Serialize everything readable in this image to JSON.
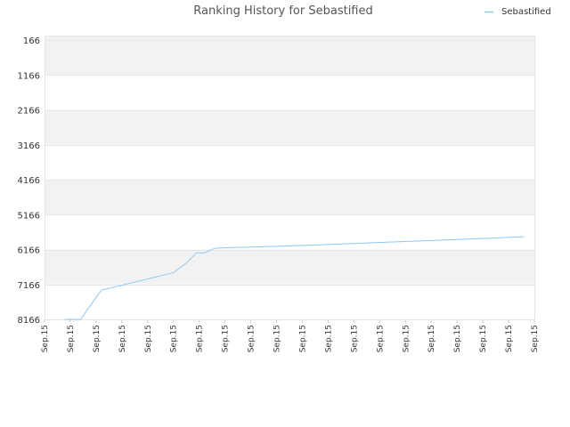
{
  "chart_data": {
    "type": "line",
    "title": "Ranking History for Sebastified",
    "xlabel": "",
    "ylabel": "",
    "y_reversed": true,
    "ylim": [
      166,
      8166
    ],
    "y_ticks": [
      166,
      1166,
      2166,
      3166,
      4166,
      5166,
      6166,
      7166,
      8166
    ],
    "x_tick_labels": [
      "Sep.15",
      "Sep.15",
      "Sep.15",
      "Sep.15",
      "Sep.15",
      "Sep.15",
      "Sep.15",
      "Sep.15",
      "Sep.15",
      "Sep.15",
      "Sep.15",
      "Sep.15",
      "Sep.15",
      "Sep.15",
      "Sep.15",
      "Sep.15",
      "Sep.15",
      "Sep.15",
      "Sep.15",
      "Sep.15"
    ],
    "legend_position": "top-right",
    "grid": true,
    "series": [
      {
        "name": "Sebastified",
        "color": "#90c8f0",
        "values": [
          {
            "x": 0.78,
            "y": 8166
          },
          {
            "x": 1.4,
            "y": 8166
          },
          {
            "x": 2.2,
            "y": 7330
          },
          {
            "x": 5.0,
            "y": 6830
          },
          {
            "x": 5.5,
            "y": 6550
          },
          {
            "x": 5.9,
            "y": 6260
          },
          {
            "x": 6.2,
            "y": 6260
          },
          {
            "x": 6.6,
            "y": 6130
          },
          {
            "x": 7.3,
            "y": 6110
          },
          {
            "x": 8.0,
            "y": 6095
          },
          {
            "x": 8.7,
            "y": 6080
          },
          {
            "x": 9.4,
            "y": 6065
          },
          {
            "x": 10.0,
            "y": 6050
          },
          {
            "x": 10.7,
            "y": 6030
          },
          {
            "x": 11.4,
            "y": 6010
          },
          {
            "x": 12.1,
            "y": 5990
          },
          {
            "x": 12.8,
            "y": 5970
          },
          {
            "x": 13.5,
            "y": 5950
          },
          {
            "x": 14.2,
            "y": 5930
          },
          {
            "x": 14.9,
            "y": 5910
          },
          {
            "x": 15.6,
            "y": 5890
          },
          {
            "x": 16.3,
            "y": 5870
          },
          {
            "x": 17.0,
            "y": 5850
          },
          {
            "x": 17.7,
            "y": 5830
          },
          {
            "x": 18.2,
            "y": 5810
          },
          {
            "x": 18.6,
            "y": 5800
          }
        ]
      }
    ]
  }
}
